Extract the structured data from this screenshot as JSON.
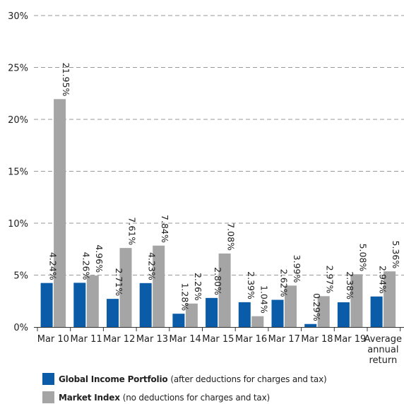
{
  "chart_data": {
    "type": "bar",
    "categories": [
      "Mar 10",
      "Mar 11",
      "Mar 12",
      "Mar 13",
      "Mar 14",
      "Mar 15",
      "Mar 16",
      "Mar 17",
      "Mar 18",
      "Mar 19",
      "Average annual return"
    ],
    "series": [
      {
        "name": "Global Income Portfolio",
        "note": "(after deductions for charges and tax)",
        "color": "#0a5ba8",
        "values": [
          4.24,
          4.26,
          2.71,
          4.23,
          1.28,
          2.8,
          2.39,
          2.62,
          0.29,
          2.38,
          2.94
        ],
        "labels": [
          "4.24%",
          "4.26%",
          "2.71%",
          "4.23%",
          "1.28%",
          "2.80%",
          "2.39%",
          "2.62%",
          "0.29%",
          "2.38%",
          "2.94%"
        ]
      },
      {
        "name": "Market Index",
        "note": "(no deductions for charges and tax)",
        "color": "#a5a5a5",
        "values": [
          21.95,
          4.96,
          7.61,
          7.84,
          2.26,
          7.08,
          1.04,
          3.99,
          2.97,
          5.08,
          5.36
        ],
        "labels": [
          "21.95%",
          "4.96%",
          "7.61%",
          "7.84%",
          "2.26%",
          "7.08%",
          "1.04%",
          "3.99%",
          "2.97%",
          "5.08%",
          "5.36%"
        ]
      }
    ],
    "yticks": [
      0,
      5,
      10,
      15,
      20,
      25,
      30
    ],
    "ytick_labels": [
      "0%",
      "5%",
      "10%",
      "15%",
      "20%",
      "25%",
      "30%"
    ],
    "ylim": [
      0,
      30
    ],
    "grid": true,
    "grid_style": "dashed",
    "legend_position": "bottom-left"
  }
}
